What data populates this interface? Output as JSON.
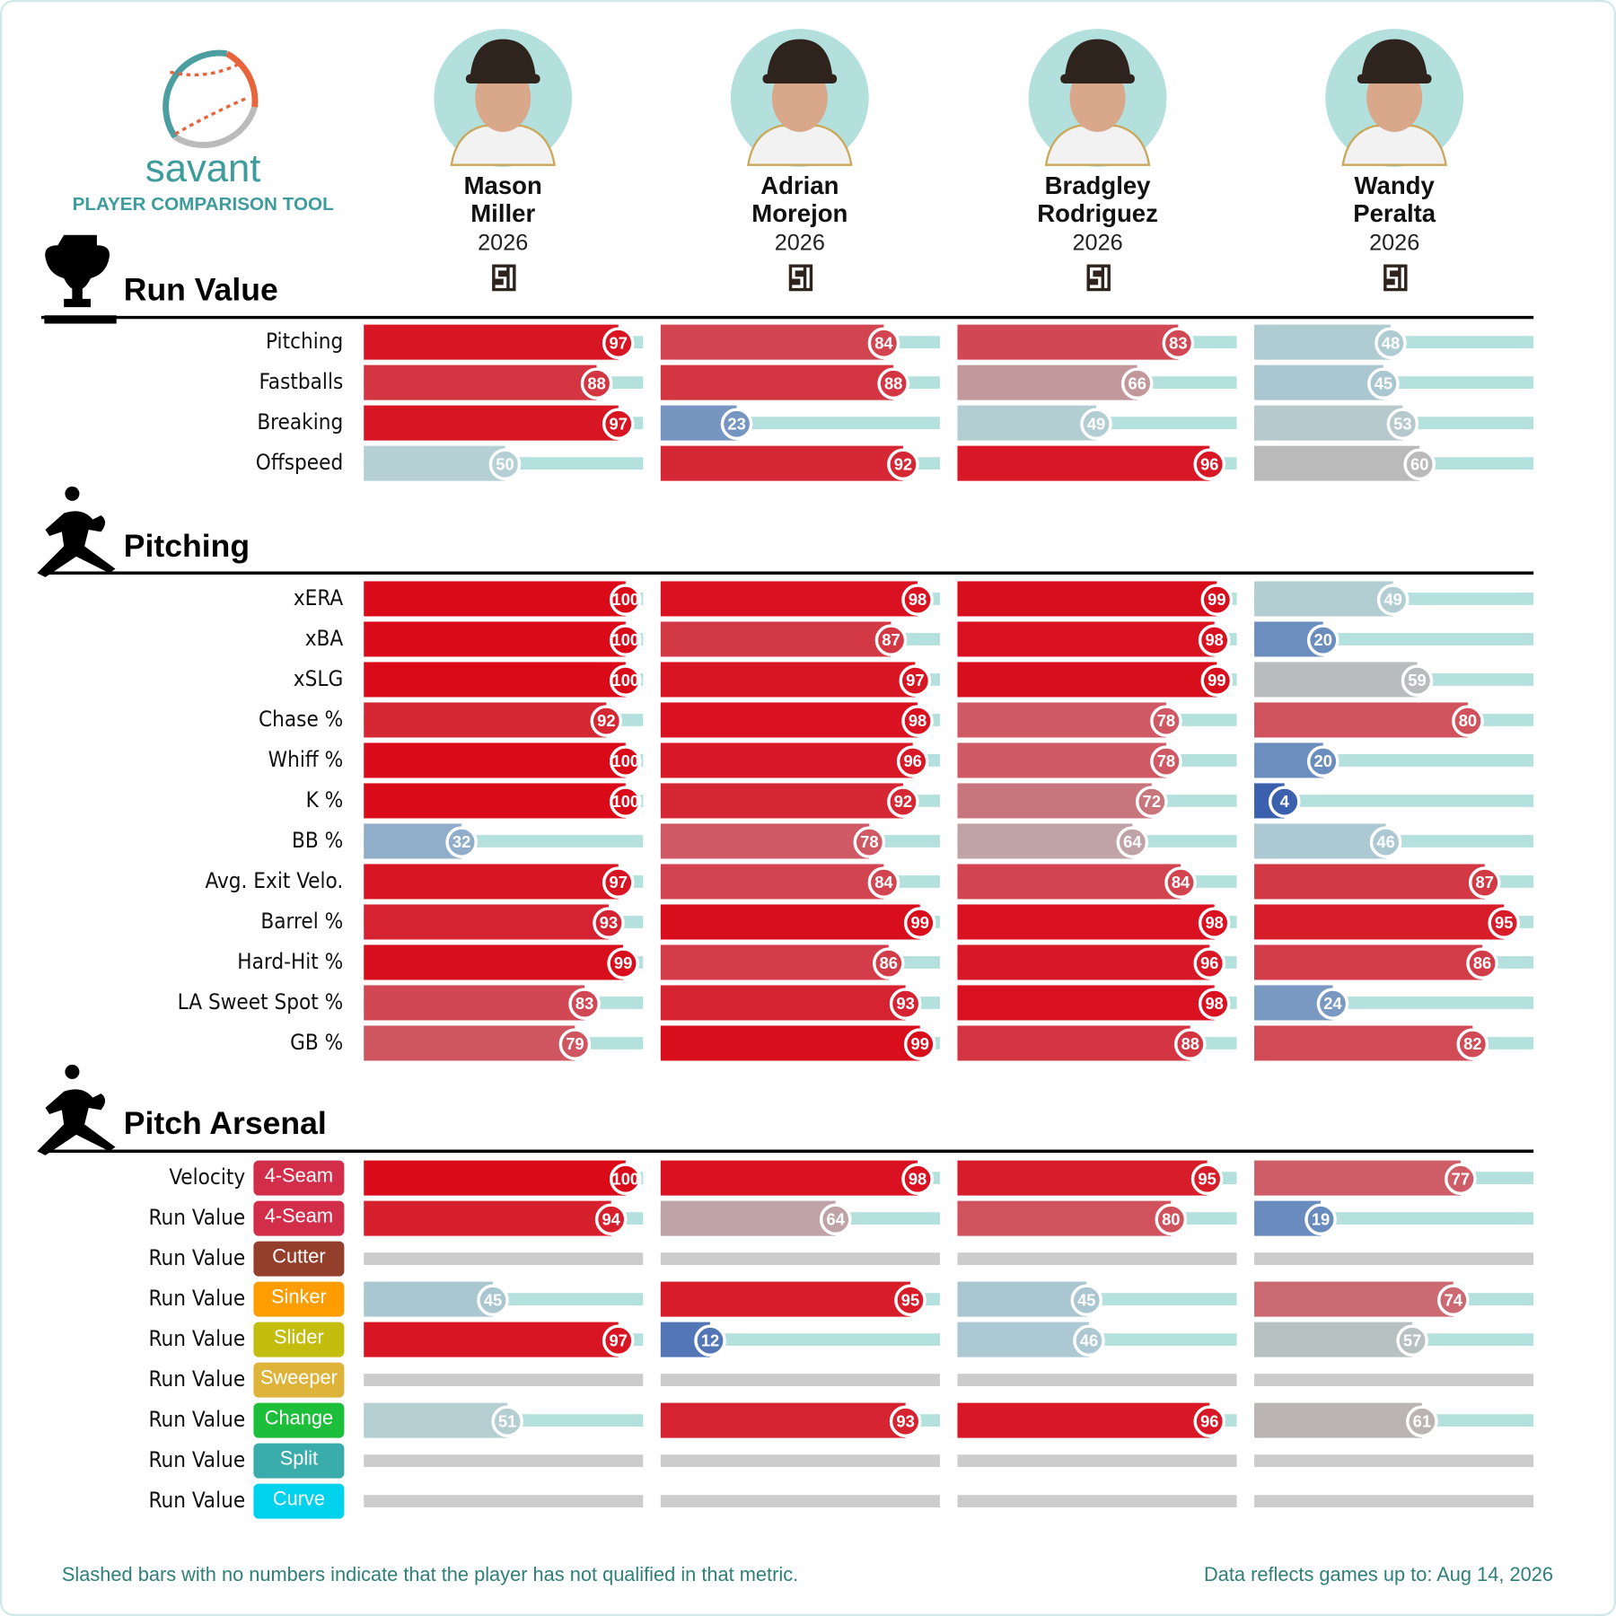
{
  "header": {
    "brand": "savant",
    "subtitle": "PLAYER COMPARISON TOOL"
  },
  "players": [
    {
      "first": "Mason",
      "last": "Miller",
      "season": "2026"
    },
    {
      "first": "Adrian",
      "last": "Morejon",
      "season": "2026"
    },
    {
      "first": "Bradgley",
      "last": "Rodriguez",
      "season": "2026"
    },
    {
      "first": "Wandy",
      "last": "Peralta",
      "season": "2026"
    }
  ],
  "sections": [
    {
      "title": "Run Value",
      "rows": [
        {
          "label": "Pitching",
          "values": [
            97,
            84,
            83,
            48
          ]
        },
        {
          "label": "Fastballs",
          "values": [
            88,
            88,
            66,
            45
          ]
        },
        {
          "label": "Breaking",
          "values": [
            97,
            23,
            49,
            53
          ]
        },
        {
          "label": "Offspeed",
          "values": [
            50,
            92,
            96,
            60
          ]
        }
      ]
    },
    {
      "title": "Pitching",
      "rows": [
        {
          "label": "xERA",
          "values": [
            100,
            98,
            99,
            49
          ]
        },
        {
          "label": "xBA",
          "values": [
            100,
            87,
            98,
            20
          ]
        },
        {
          "label": "xSLG",
          "values": [
            100,
            97,
            99,
            59
          ]
        },
        {
          "label": "Chase %",
          "values": [
            92,
            98,
            78,
            80
          ]
        },
        {
          "label": "Whiff %",
          "values": [
            100,
            96,
            78,
            20
          ]
        },
        {
          "label": "K %",
          "values": [
            100,
            92,
            72,
            4
          ]
        },
        {
          "label": "BB %",
          "values": [
            32,
            78,
            64,
            46
          ]
        },
        {
          "label": "Avg. Exit Velo.",
          "values": [
            97,
            84,
            84,
            87
          ]
        },
        {
          "label": "Barrel %",
          "values": [
            93,
            99,
            98,
            95
          ]
        },
        {
          "label": "Hard-Hit %",
          "values": [
            99,
            86,
            96,
            86
          ]
        },
        {
          "label": "LA Sweet Spot %",
          "values": [
            83,
            93,
            98,
            24
          ]
        },
        {
          "label": "GB %",
          "values": [
            79,
            99,
            88,
            82
          ]
        }
      ]
    },
    {
      "title": "Pitch Arsenal",
      "rows": [
        {
          "label": "Velocity",
          "pitch": "4-Seam",
          "pitch_color": "#d22d49",
          "values": [
            100,
            98,
            95,
            77
          ]
        },
        {
          "label": "Run Value",
          "pitch": "4-Seam",
          "pitch_color": "#d22d49",
          "values": [
            94,
            64,
            80,
            19
          ]
        },
        {
          "label": "Run Value",
          "pitch": "Cutter",
          "pitch_color": "#933f2c",
          "values": [
            null,
            null,
            null,
            null
          ]
        },
        {
          "label": "Run Value",
          "pitch": "Sinker",
          "pitch_color": "#fe9d00",
          "values": [
            45,
            95,
            45,
            74
          ]
        },
        {
          "label": "Run Value",
          "pitch": "Slider",
          "pitch_color": "#c3bd0e",
          "values": [
            97,
            12,
            46,
            57
          ]
        },
        {
          "label": "Run Value",
          "pitch": "Sweeper",
          "pitch_color": "#ddb33a",
          "values": [
            null,
            null,
            null,
            null
          ]
        },
        {
          "label": "Run Value",
          "pitch": "Change",
          "pitch_color": "#1dbe3a",
          "values": [
            51,
            93,
            96,
            61
          ]
        },
        {
          "label": "Run Value",
          "pitch": "Split",
          "pitch_color": "#3bacac",
          "values": [
            null,
            null,
            null,
            null
          ]
        },
        {
          "label": "Run Value",
          "pitch": "Curve",
          "pitch_color": "#00d1ed",
          "values": [
            null,
            null,
            null,
            null
          ]
        }
      ]
    }
  ],
  "footer": {
    "note": "Slashed bars with no numbers indicate that the player has not qualified in that metric.",
    "updated": "Data reflects games up to: Aug 14, 2026"
  }
}
